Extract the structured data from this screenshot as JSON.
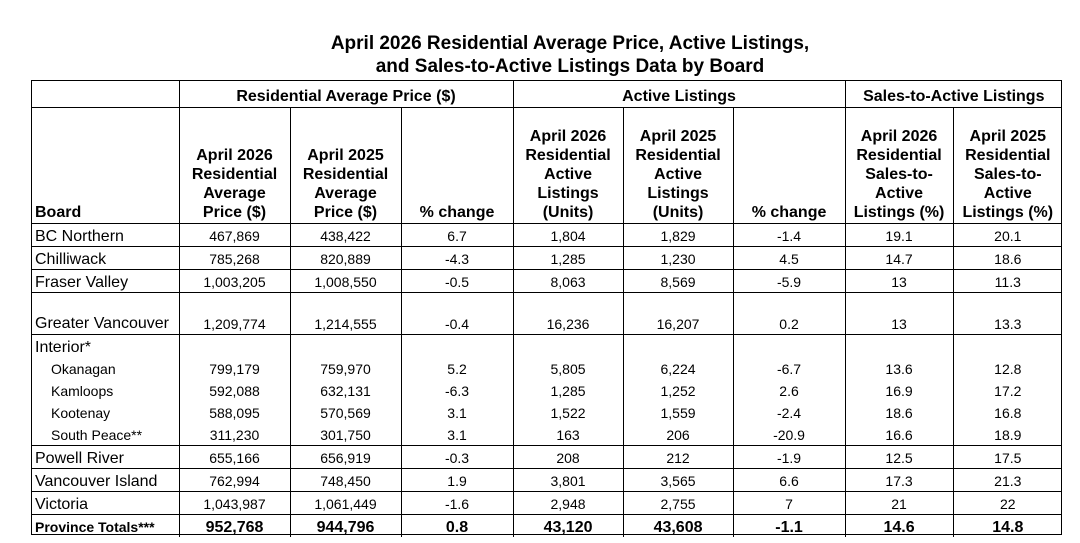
{
  "title": {
    "line1": "April 2026 Residential Average Price, Active Listings,",
    "line2": "and Sales-to-Active Listings Data by Board"
  },
  "groups": {
    "avg_price": "Residential Average Price ($)",
    "active": "Active Listings",
    "sal": "Sales-to-Active Listings"
  },
  "columns": {
    "board": "Board",
    "price_2026": "April 2026 Residential Average Price ($)",
    "price_2025": "April 2025 Residential Average Price ($)",
    "price_chg": "% change",
    "active_2026": "April 2026 Residential Active Listings (Units)",
    "active_2025": "April 2025 Residential Active Listings (Units)",
    "active_chg": "% change",
    "sal_2026": "April 2026 Residential Sales-to-Active Listings (%)",
    "sal_2025": "April 2025 Residential Sales-to-Active Listings (%)"
  },
  "rows": [
    {
      "board": "BC Northern",
      "p26": "467,869",
      "p25": "438,422",
      "pc": "6.7",
      "a26": "1,804",
      "a25": "1,829",
      "ac": "-1.4",
      "s26": "19.1",
      "s25": "20.1"
    },
    {
      "board": "Chilliwack",
      "p26": "785,268",
      "p25": "820,889",
      "pc": "-4.3",
      "a26": "1,285",
      "a25": "1,230",
      "ac": "4.5",
      "s26": "14.7",
      "s25": "18.6"
    },
    {
      "board": "Fraser Valley",
      "p26": "1,003,205",
      "p25": "1,008,550",
      "pc": "-0.5",
      "a26": "8,063",
      "a25": "8,569",
      "ac": "-5.9",
      "s26": "13",
      "s25": "11.3"
    },
    {
      "board": "Greater Vancouver",
      "p26": "1,209,774",
      "p25": "1,214,555",
      "pc": "-0.4",
      "a26": "16,236",
      "a25": "16,207",
      "ac": "0.2",
      "s26": "13",
      "s25": "13.3"
    },
    {
      "board": "Interior*",
      "p26": "",
      "p25": "",
      "pc": "",
      "a26": "",
      "a25": "",
      "ac": "",
      "s26": "",
      "s25": ""
    },
    {
      "board": "Okanagan",
      "p26": "799,179",
      "p25": "759,970",
      "pc": "5.2",
      "a26": "5,805",
      "a25": "6,224",
      "ac": "-6.7",
      "s26": "13.6",
      "s25": "12.8"
    },
    {
      "board": "Kamloops",
      "p26": "592,088",
      "p25": "632,131",
      "pc": "-6.3",
      "a26": "1,285",
      "a25": "1,252",
      "ac": "2.6",
      "s26": "16.9",
      "s25": "17.2"
    },
    {
      "board": "Kootenay",
      "p26": "588,095",
      "p25": "570,569",
      "pc": "3.1",
      "a26": "1,522",
      "a25": "1,559",
      "ac": "-2.4",
      "s26": "18.6",
      "s25": "16.8"
    },
    {
      "board": "South Peace**",
      "p26": "311,230",
      "p25": "301,750",
      "pc": "3.1",
      "a26": "163",
      "a25": "206",
      "ac": "-20.9",
      "s26": "16.6",
      "s25": "18.9"
    },
    {
      "board": "Powell River",
      "p26": "655,166",
      "p25": "656,919",
      "pc": "-0.3",
      "a26": "208",
      "a25": "212",
      "ac": "-1.9",
      "s26": "12.5",
      "s25": "17.5"
    },
    {
      "board": "Vancouver Island",
      "p26": "762,994",
      "p25": "748,450",
      "pc": "1.9",
      "a26": "3,801",
      "a25": "3,565",
      "ac": "6.6",
      "s26": "17.3",
      "s25": "21.3"
    },
    {
      "board": "Victoria",
      "p26": "1,043,987",
      "p25": "1,061,449",
      "pc": "-1.6",
      "a26": "2,948",
      "a25": "2,755",
      "ac": "7",
      "s26": "21",
      "s25": "22"
    },
    {
      "board": "Province Totals***",
      "p26": "952,768",
      "p25": "944,796",
      "pc": "0.8",
      "a26": "43,120",
      "a25": "43,608",
      "ac": "-1.1",
      "s26": "14.6",
      "s25": "14.8"
    }
  ]
}
